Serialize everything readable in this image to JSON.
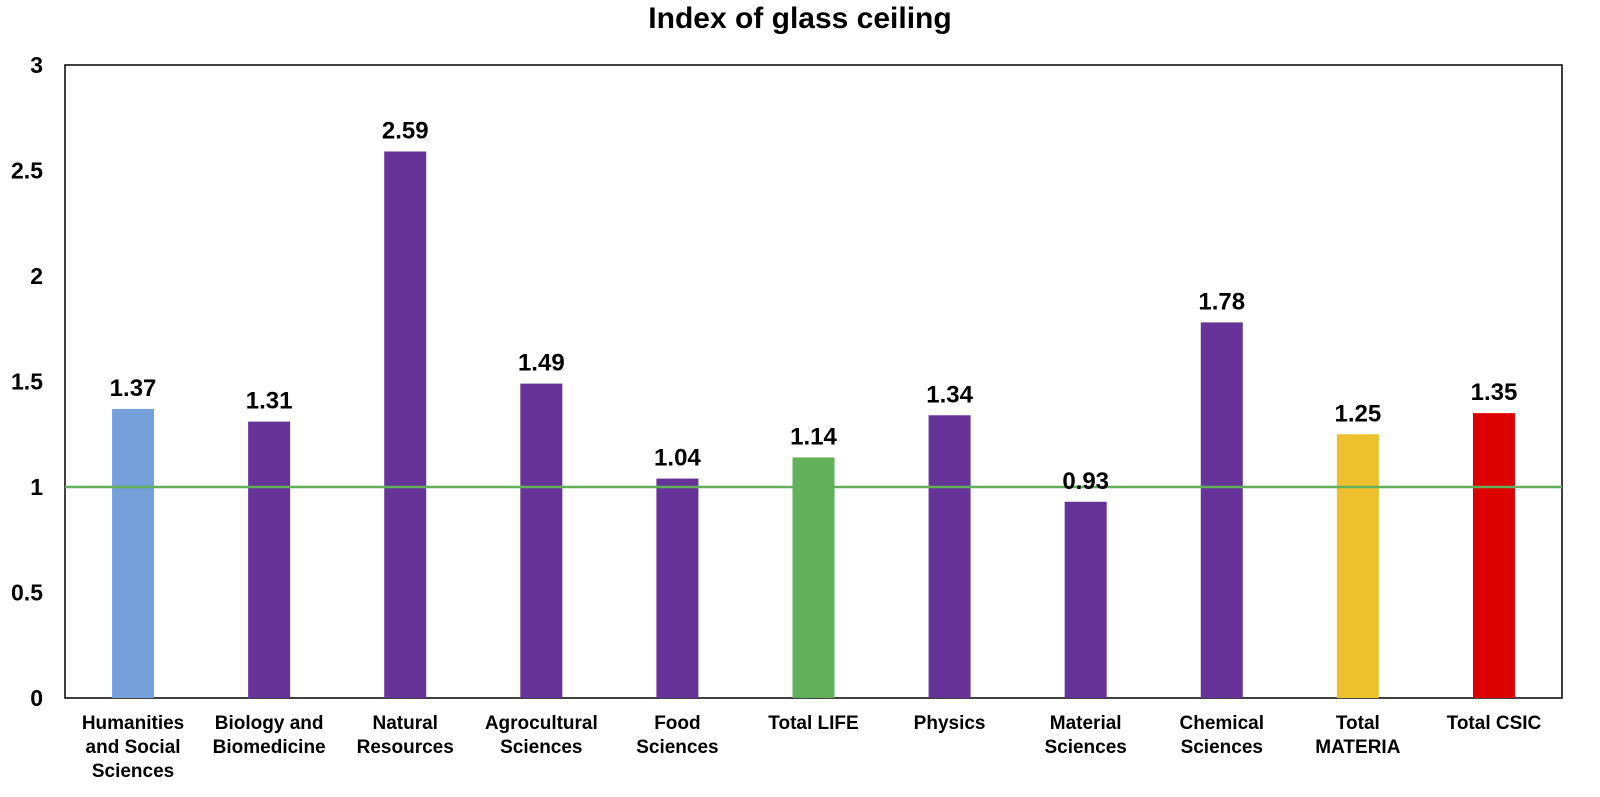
{
  "chart_data": {
    "type": "bar",
    "title": "Index of glass ceiling",
    "xlabel": "",
    "ylabel": "",
    "ylim": [
      0,
      3
    ],
    "yticks": [
      0,
      0.5,
      1,
      1.5,
      2,
      2.5,
      3
    ],
    "ytick_labels": [
      "0",
      "0.5",
      "1",
      "1.5",
      "2",
      "2.5",
      "3"
    ],
    "categories": [
      [
        "Humanities",
        "and Social",
        "Sciences"
      ],
      [
        "Biology and",
        "Biomedicine"
      ],
      [
        "Natural",
        "Resources"
      ],
      [
        "Agrocultural",
        "Sciences"
      ],
      [
        "Food",
        "Sciences"
      ],
      [
        "Total LIFE"
      ],
      [
        "Physics"
      ],
      [
        "Material",
        "Sciences"
      ],
      [
        "Chemical",
        "Sciences"
      ],
      [
        "Total",
        "MATERIA"
      ],
      [
        "Total CSIC"
      ]
    ],
    "values": [
      1.37,
      1.31,
      2.59,
      1.49,
      1.04,
      1.14,
      1.34,
      0.93,
      1.78,
      1.25,
      1.35
    ],
    "value_labels": [
      "1.37",
      "1.31",
      "2.59",
      "1.49",
      "1.04",
      "1.14",
      "1.34",
      "0.93",
      "1.78",
      "1.25",
      "1.35"
    ],
    "bar_colors": [
      "#76a0d9",
      "#663399",
      "#663399",
      "#663399",
      "#663399",
      "#62b05a",
      "#663399",
      "#663399",
      "#663399",
      "#edc12e",
      "#dd0000"
    ],
    "reference_line": {
      "y": 1,
      "color": "#62b05a"
    },
    "grid": false,
    "legend": "none"
  }
}
